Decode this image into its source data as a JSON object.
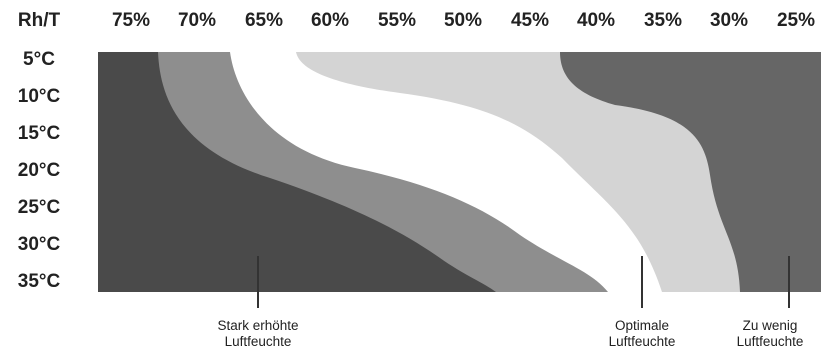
{
  "header": {
    "corner_label": "Rh/T",
    "humidity_columns": [
      "75%",
      "70%",
      "65%",
      "60%",
      "55%",
      "50%",
      "45%",
      "40%",
      "35%",
      "30%",
      "25%"
    ]
  },
  "temperature_rows": [
    "5°C",
    "10°C",
    "15°C",
    "20°C",
    "25°C",
    "30°C",
    "35°C"
  ],
  "legend": [
    {
      "line1": "Stark erhöhte",
      "line2": "Luftfeuchte",
      "color": "#4a4a4a"
    },
    {
      "line1": "Optimale",
      "line2": "Luftfeuchte",
      "color": "#ffffff"
    },
    {
      "line1": "Zu wenig",
      "line2": "Luftfeuchte",
      "color": "#666666"
    }
  ],
  "zone_colors": {
    "very_high": "#4a4a4a",
    "high": "#8e8e8e",
    "optimal": "#ffffff",
    "slightly_low": "#d4d4d4",
    "too_low": "#666666"
  }
}
